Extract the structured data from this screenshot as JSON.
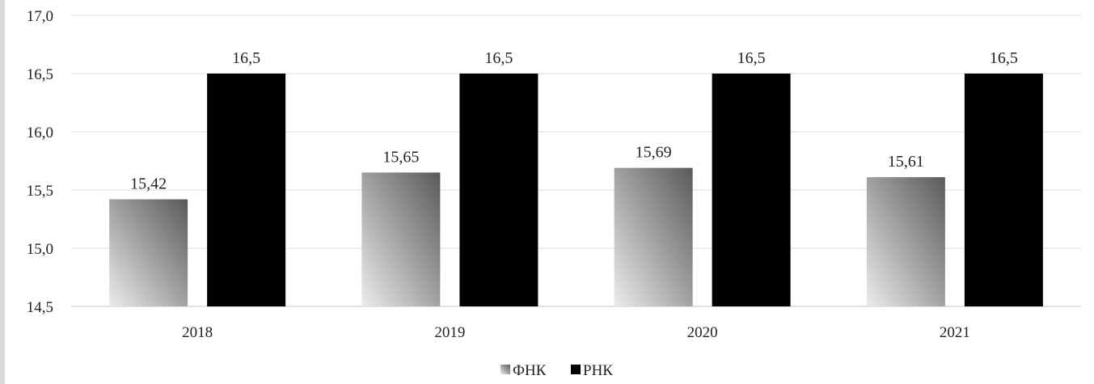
{
  "chart_data": {
    "type": "bar",
    "categories": [
      "2018",
      "2019",
      "2020",
      "2021"
    ],
    "series": [
      {
        "name": "ФНК",
        "values": [
          15.42,
          15.65,
          15.69,
          15.61
        ],
        "labels": [
          "15,42",
          "15,65",
          "15,69",
          "15,61"
        ],
        "color": "#7a7a7a"
      },
      {
        "name": "РНК",
        "values": [
          16.5,
          16.5,
          16.5,
          16.5
        ],
        "labels": [
          "16,5",
          "16,5",
          "16,5",
          "16,5"
        ],
        "color": "#000000"
      }
    ],
    "ylim": [
      14.5,
      17.0
    ],
    "yticks": [
      {
        "value": 14.5,
        "label": "14,5"
      },
      {
        "value": 15.0,
        "label": "15,0"
      },
      {
        "value": 15.5,
        "label": "15,5"
      },
      {
        "value": 16.0,
        "label": "16,0"
      },
      {
        "value": 16.5,
        "label": "16,5"
      },
      {
        "value": 17.0,
        "label": "17,0"
      }
    ],
    "title": "",
    "xlabel": "",
    "ylabel": "",
    "grid": true,
    "legend_position": "bottom-center"
  }
}
